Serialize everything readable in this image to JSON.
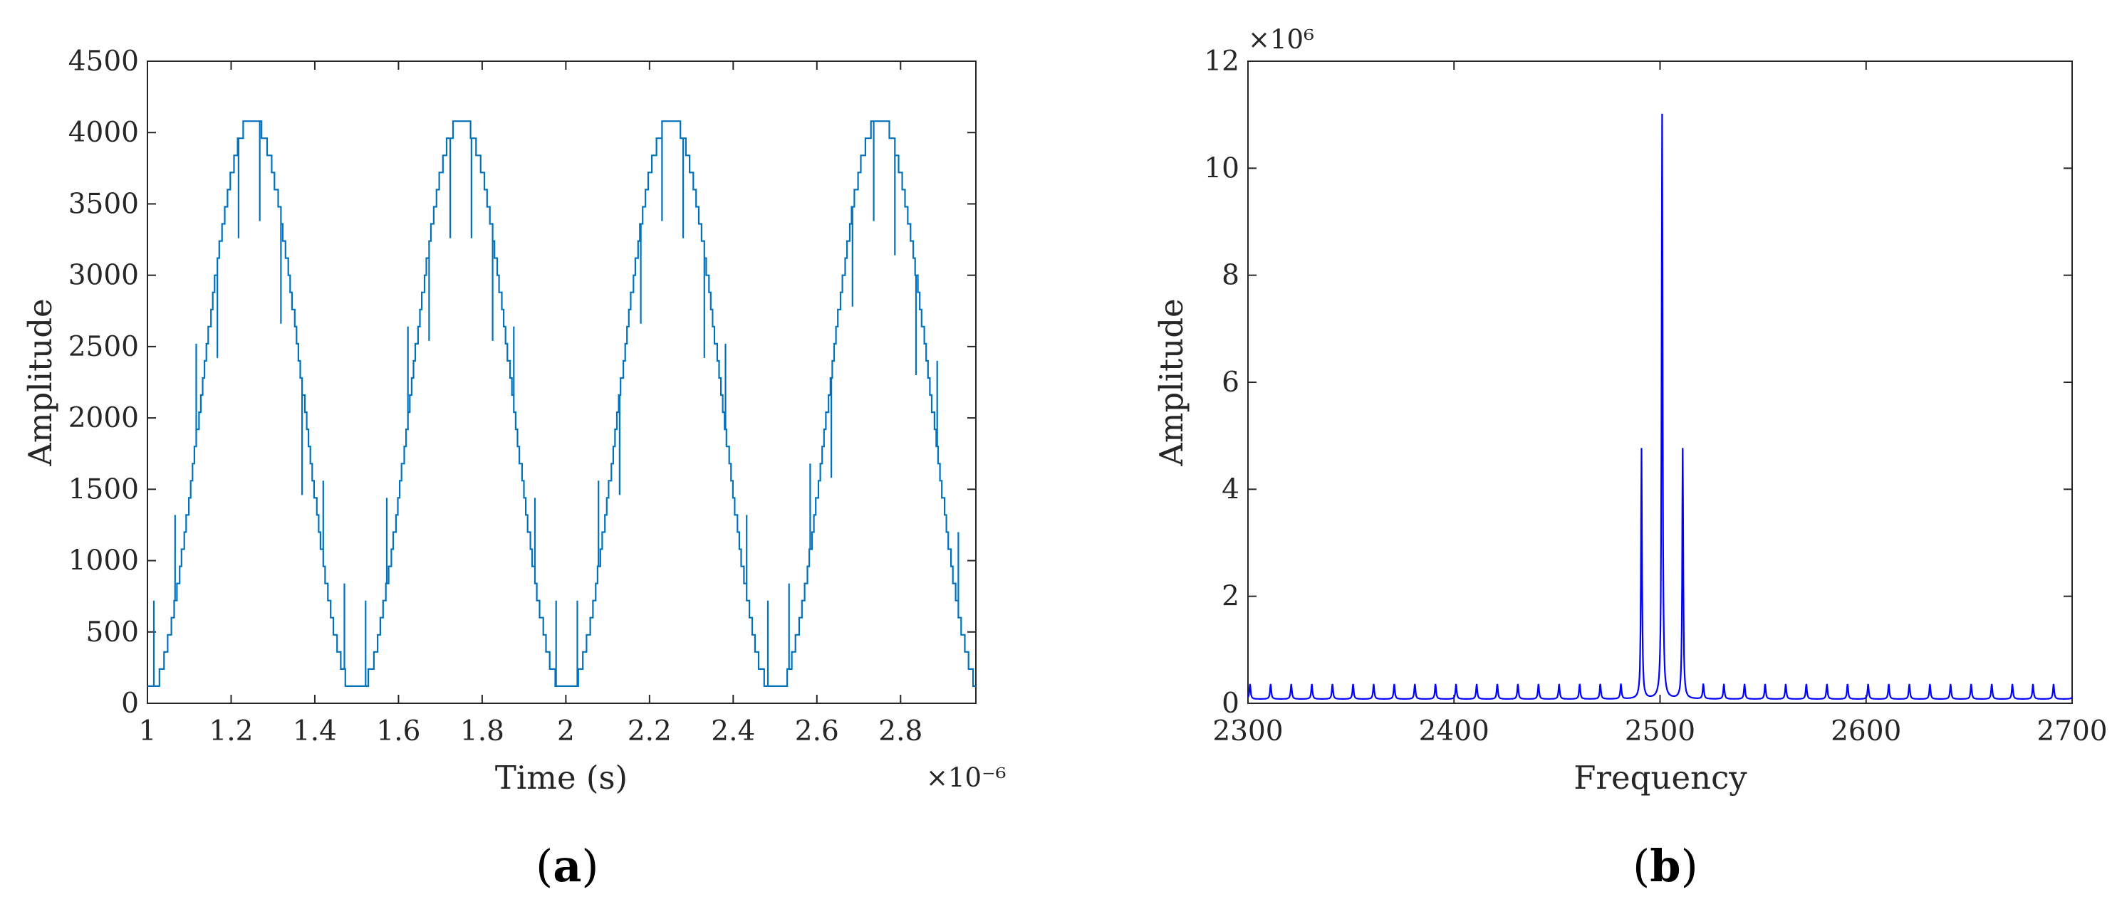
{
  "panels": [
    {
      "label_open": "(",
      "label_letter": "a",
      "label_close": ")"
    },
    {
      "label_open": "(",
      "label_letter": "b",
      "label_close": ")"
    }
  ],
  "chart_data": [
    {
      "type": "line",
      "panel": "a",
      "title": "",
      "xlabel": "Time (s)",
      "ylabel": "Amplitude",
      "x_exponent_label": "×10⁻⁶",
      "xlim": [
        1,
        2.98
      ],
      "ylim": [
        0,
        4500
      ],
      "xticks": [
        1,
        1.2,
        1.4,
        1.6,
        1.8,
        2,
        2.2,
        2.4,
        2.6,
        2.8
      ],
      "xtick_labels": [
        "1",
        "1.2",
        "1.4",
        "1.6",
        "1.8",
        "2",
        "2.2",
        "2.4",
        "2.6",
        "2.8"
      ],
      "yticks": [
        0,
        500,
        1000,
        1500,
        2000,
        2500,
        3000,
        3500,
        4000,
        4500
      ],
      "ytick_labels": [
        "0",
        "500",
        "1000",
        "1500",
        "2000",
        "2500",
        "3000",
        "3500",
        "4000",
        "4500"
      ],
      "grid": false,
      "line_color": "#0072BD",
      "signal": {
        "description_kind": "quantized sine",
        "period": 0.5,
        "max_value": 4095,
        "min_value": 60,
        "quantization_step": 120,
        "x_start": 1.0,
        "x_end": 2.98,
        "phase_start_value": 100,
        "spike_values_up": [
          2000,
          4000
        ],
        "spike_values_down": [
          3500,
          1500
        ]
      },
      "x": [
        1.0,
        1.05,
        1.1,
        1.15,
        1.2,
        1.25,
        1.3,
        1.35,
        1.4,
        1.45,
        1.5,
        1.55,
        1.6,
        1.65,
        1.7,
        1.75,
        1.8,
        1.85,
        1.9,
        1.95,
        2.0,
        2.05,
        2.1,
        2.15,
        2.2,
        2.25,
        2.3,
        2.35,
        2.4,
        2.45,
        2.5,
        2.55,
        2.6,
        2.65,
        2.7,
        2.75,
        2.8,
        2.85,
        2.9,
        2.95,
        2.98
      ],
      "y": [
        100,
        500,
        1450,
        2900,
        3900,
        4080,
        3800,
        2700,
        1500,
        450,
        60,
        400,
        1300,
        2700,
        3800,
        4080,
        3850,
        2900,
        1600,
        500,
        60,
        450,
        1350,
        2750,
        3850,
        4080,
        3800,
        2800,
        1550,
        500,
        60,
        420,
        1400,
        2800,
        3850,
        4080,
        3850,
        2850,
        1500,
        550,
        330
      ]
    },
    {
      "type": "line",
      "panel": "b",
      "title": "",
      "xlabel": "Frequency",
      "ylabel": "Amplitude",
      "y_exponent_label": "×10⁶",
      "xlim": [
        2300,
        2700
      ],
      "ylim": [
        0,
        12
      ],
      "xticks": [
        2300,
        2400,
        2500,
        2600,
        2700
      ],
      "xtick_labels": [
        "2300",
        "2400",
        "2500",
        "2600",
        "2700"
      ],
      "yticks": [
        0,
        2,
        4,
        6,
        8,
        10,
        12
      ],
      "ytick_labels": [
        "0",
        "2",
        "4",
        "6",
        "8",
        "10",
        "12"
      ],
      "grid": false,
      "line_color": "#0000FF",
      "peaks": [
        {
          "x": 2491,
          "y": 4.4
        },
        {
          "x": 2501,
          "y": 10.65
        },
        {
          "x": 2511,
          "y": 4.4
        }
      ],
      "sidelobe_height": 0.28,
      "sidelobe_spacing": 10,
      "baseline": 0.08
    }
  ]
}
